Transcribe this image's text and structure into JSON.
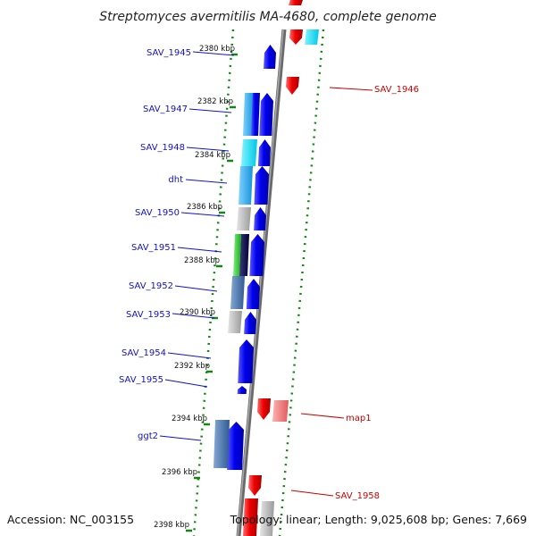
{
  "title": "Streptomyces avermitilis MA-4680, complete genome",
  "footer": {
    "accession": "Accession: NC_003155",
    "summary": "Topology: linear; Length: 9,025,608 bp; Genes: 7,669"
  },
  "colors": {
    "forward_label": "#1111cc",
    "reverse_label": "#cc0000",
    "backbone": "#7a7a7a",
    "ruler_dots": "#118811"
  },
  "ticks": [
    {
      "label": "2380 kbp"
    },
    {
      "label": "2382 kbp"
    },
    {
      "label": "2384 kbp"
    },
    {
      "label": "2386 kbp"
    },
    {
      "label": "2388 kbp"
    },
    {
      "label": "2390 kbp"
    },
    {
      "label": "2392 kbp"
    },
    {
      "label": "2394 kbp"
    },
    {
      "label": "2396 kbp"
    },
    {
      "label": "2398 kbp"
    }
  ],
  "forward_genes": [
    {
      "label": "SAV_1945"
    },
    {
      "label": "SAV_1947"
    },
    {
      "label": "SAV_1948"
    },
    {
      "label": "dht"
    },
    {
      "label": "SAV_1950"
    },
    {
      "label": "SAV_1951"
    },
    {
      "label": "SAV_1952"
    },
    {
      "label": "SAV_1953"
    },
    {
      "label": "SAV_1954"
    },
    {
      "label": "SAV_1955"
    },
    {
      "label": "ggt2"
    }
  ],
  "reverse_genes": [
    {
      "label": "SAV_1946"
    },
    {
      "label": "map1"
    },
    {
      "label": "SAV_1958"
    }
  ]
}
